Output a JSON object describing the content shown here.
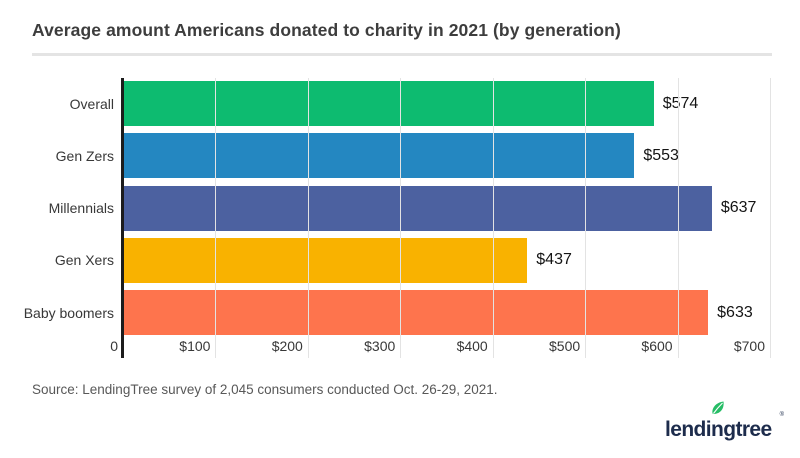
{
  "header": {
    "title": "Average amount Americans donated to charity in 2021 (by generation)"
  },
  "chart_data": {
    "type": "bar",
    "orientation": "horizontal",
    "title": "Average amount Americans donated to charity in 2021 (by generation)",
    "categories": [
      "Overall",
      "Gen Zers",
      "Millennials",
      "Gen Xers",
      "Baby boomers"
    ],
    "values": [
      574,
      553,
      637,
      437,
      633
    ],
    "value_labels": [
      "$574",
      "$553",
      "$637",
      "$437",
      "$633"
    ],
    "bar_colors": [
      "#0dbb70",
      "#2487c1",
      "#4c61a0",
      "#f9b200",
      "#fe744d"
    ],
    "xlabel": "",
    "ylabel": "",
    "xlim": [
      0,
      700
    ],
    "x_ticks": [
      {
        "value": 0,
        "label": "0"
      },
      {
        "value": 100,
        "label": "$100"
      },
      {
        "value": 200,
        "label": "$200"
      },
      {
        "value": 300,
        "label": "$300"
      },
      {
        "value": 400,
        "label": "$400"
      },
      {
        "value": 500,
        "label": "$500"
      },
      {
        "value": 600,
        "label": "$600"
      },
      {
        "value": 700,
        "label": "$700"
      }
    ],
    "grid": "vertical",
    "legend": "none",
    "axis_color": "#1c1c1c",
    "gridline_color": "#e3e3e3"
  },
  "footer": {
    "source": "Source: LendingTree survey of 2,045 consumers conducted Oct. 26-29, 2021.",
    "logo_text": "lendingtree",
    "logo_registered": "®",
    "logo_text_color": "#1d2c4c",
    "logo_leaf_color": "#27bd66"
  }
}
